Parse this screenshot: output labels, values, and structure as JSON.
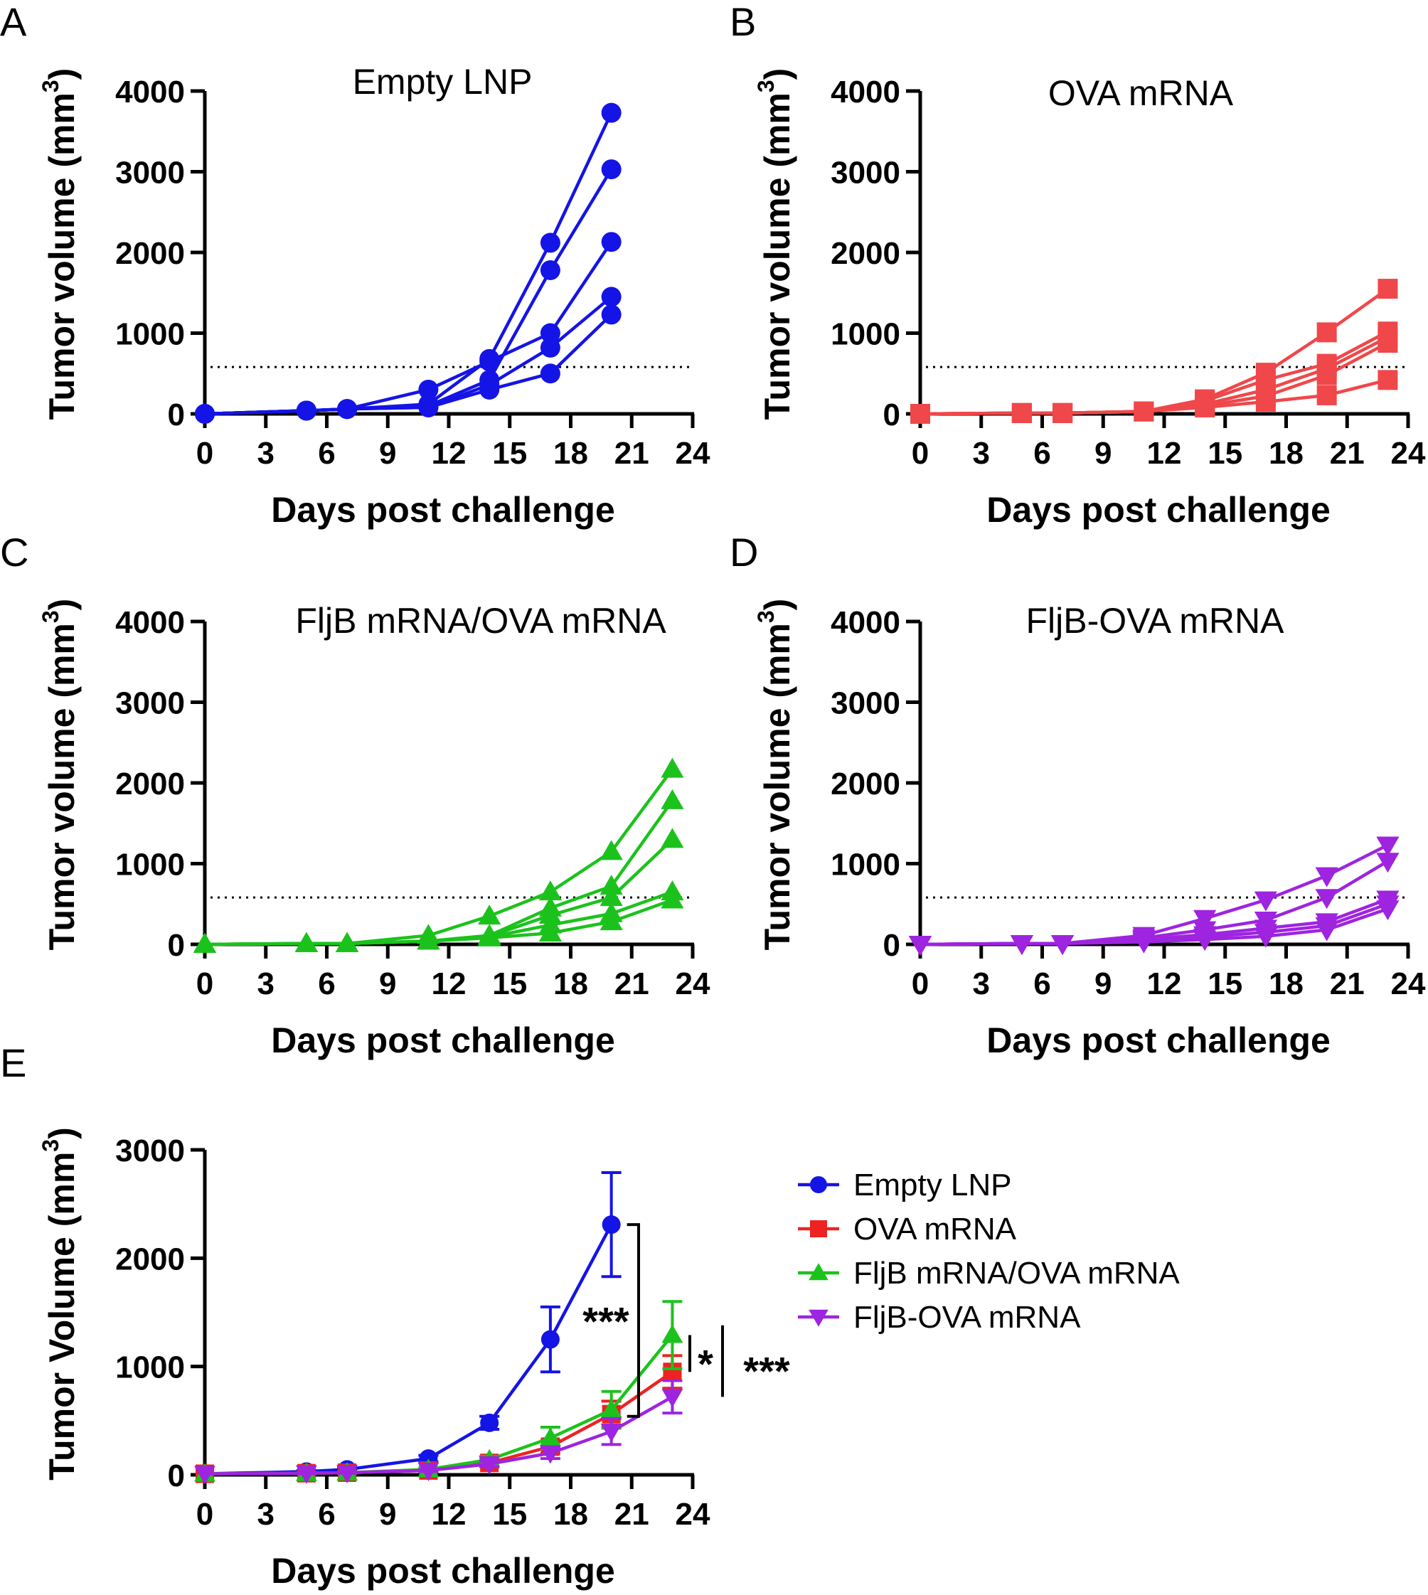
{
  "colors": {
    "blue": "#1414e6",
    "red": "#ee2222",
    "green": "#1cc21c",
    "purple": "#9e24e0",
    "light_red": "#f0474a",
    "axis": "#000000"
  },
  "chart_data": [
    {
      "panel": "A",
      "type": "line",
      "title": "Empty LNP",
      "xlabel": "Days post challenge",
      "ylabel": "Tumor volume (mm",
      "ylabel_sup": "3",
      "ylabel_end": ")",
      "xlim": [
        0,
        24
      ],
      "ylim": [
        0,
        4000
      ],
      "xticks": [
        "0",
        "3",
        "6",
        "9",
        "12",
        "15",
        "18",
        "21",
        "24"
      ],
      "yticks": [
        "0",
        "1000",
        "2000",
        "3000",
        "4000"
      ],
      "threshold": 580,
      "marker": "circle",
      "color": "blue",
      "series": [
        {
          "x": [
            0,
            5,
            7,
            11,
            14,
            17,
            20
          ],
          "y": [
            0,
            40,
            60,
            120,
            680,
            2120,
            3730
          ]
        },
        {
          "x": [
            0,
            5,
            7,
            11,
            14,
            17,
            20
          ],
          "y": [
            0,
            40,
            60,
            100,
            420,
            1780,
            3030
          ]
        },
        {
          "x": [
            0,
            5,
            7,
            11,
            14,
            17,
            20
          ],
          "y": [
            0,
            40,
            60,
            300,
            650,
            1000,
            2130
          ]
        },
        {
          "x": [
            0,
            5,
            7,
            11,
            14,
            17,
            20
          ],
          "y": [
            0,
            40,
            60,
            80,
            360,
            820,
            1450
          ]
        },
        {
          "x": [
            0,
            5,
            7,
            11,
            14,
            17,
            20
          ],
          "y": [
            0,
            40,
            60,
            80,
            300,
            500,
            1230
          ]
        }
      ]
    },
    {
      "panel": "B",
      "type": "line",
      "title": "OVA mRNA",
      "xlabel": "Days post challenge",
      "ylabel": "Tumor volume (mm",
      "ylabel_sup": "3",
      "ylabel_end": ")",
      "xlim": [
        0,
        24
      ],
      "ylim": [
        0,
        4000
      ],
      "xticks": [
        "0",
        "3",
        "6",
        "9",
        "12",
        "15",
        "18",
        "21",
        "24"
      ],
      "yticks": [
        "0",
        "1000",
        "2000",
        "3000",
        "4000"
      ],
      "threshold": 580,
      "marker": "square",
      "color": "light_red",
      "series": [
        {
          "x": [
            0,
            5,
            7,
            11,
            14,
            17,
            20,
            23
          ],
          "y": [
            0,
            10,
            10,
            30,
            180,
            510,
            1010,
            1550
          ]
        },
        {
          "x": [
            0,
            5,
            7,
            11,
            14,
            17,
            20,
            23
          ],
          "y": [
            0,
            10,
            10,
            30,
            160,
            420,
            620,
            1020
          ]
        },
        {
          "x": [
            0,
            5,
            7,
            11,
            14,
            17,
            20,
            23
          ],
          "y": [
            0,
            10,
            10,
            30,
            120,
            300,
            560,
            950
          ]
        },
        {
          "x": [
            0,
            5,
            7,
            11,
            14,
            17,
            20,
            23
          ],
          "y": [
            0,
            10,
            10,
            30,
            100,
            220,
            480,
            880
          ]
        },
        {
          "x": [
            0,
            5,
            7,
            11,
            14,
            17,
            20,
            23
          ],
          "y": [
            0,
            10,
            10,
            30,
            80,
            150,
            230,
            420
          ]
        }
      ]
    },
    {
      "panel": "C",
      "type": "line",
      "title": "FljB mRNA/OVA mRNA",
      "xlabel": "Days post challenge",
      "ylabel": "Tumor volume (mm",
      "ylabel_sup": "3",
      "ylabel_end": ")",
      "xlim": [
        0,
        24
      ],
      "ylim": [
        0,
        4000
      ],
      "xticks": [
        "0",
        "3",
        "6",
        "9",
        "12",
        "15",
        "18",
        "21",
        "24"
      ],
      "yticks": [
        "0",
        "1000",
        "2000",
        "3000",
        "4000"
      ],
      "threshold": 580,
      "marker": "triangle-up",
      "color": "green",
      "series": [
        {
          "x": [
            0,
            5,
            7,
            11,
            14,
            17,
            20,
            23
          ],
          "y": [
            0,
            10,
            10,
            110,
            350,
            650,
            1150,
            2170
          ]
        },
        {
          "x": [
            0,
            5,
            7,
            11,
            14,
            17,
            20,
            23
          ],
          "y": [
            0,
            10,
            10,
            40,
            110,
            450,
            720,
            1780
          ]
        },
        {
          "x": [
            0,
            5,
            7,
            11,
            14,
            17,
            20,
            23
          ],
          "y": [
            0,
            10,
            10,
            40,
            100,
            360,
            580,
            1300
          ]
        },
        {
          "x": [
            0,
            5,
            7,
            11,
            14,
            17,
            20,
            23
          ],
          "y": [
            0,
            10,
            10,
            40,
            90,
            240,
            380,
            650
          ]
        },
        {
          "x": [
            0,
            5,
            7,
            11,
            14,
            17,
            20,
            23
          ],
          "y": [
            0,
            10,
            10,
            40,
            80,
            140,
            280,
            550
          ]
        }
      ]
    },
    {
      "panel": "D",
      "type": "line",
      "title": "FljB-OVA mRNA",
      "xlabel": "Days post challenge",
      "ylabel": "Tumor volume (mm",
      "ylabel_sup": "3",
      "ylabel_end": ")",
      "xlim": [
        0,
        24
      ],
      "ylim": [
        0,
        4000
      ],
      "xticks": [
        "0",
        "3",
        "6",
        "9",
        "12",
        "15",
        "18",
        "21",
        "24"
      ],
      "yticks": [
        "0",
        "1000",
        "2000",
        "3000",
        "4000"
      ],
      "threshold": 580,
      "marker": "triangle-down",
      "color": "purple",
      "series": [
        {
          "x": [
            0,
            5,
            7,
            11,
            14,
            17,
            20,
            23
          ],
          "y": [
            0,
            10,
            10,
            110,
            320,
            550,
            850,
            1230
          ]
        },
        {
          "x": [
            0,
            5,
            7,
            11,
            14,
            17,
            20,
            23
          ],
          "y": [
            0,
            10,
            10,
            80,
            180,
            300,
            580,
            1030
          ]
        },
        {
          "x": [
            0,
            5,
            7,
            11,
            14,
            17,
            20,
            23
          ],
          "y": [
            0,
            10,
            10,
            60,
            120,
            200,
            280,
            560
          ]
        },
        {
          "x": [
            0,
            5,
            7,
            11,
            14,
            17,
            20,
            23
          ],
          "y": [
            0,
            10,
            10,
            50,
            90,
            150,
            230,
            500
          ]
        },
        {
          "x": [
            0,
            5,
            7,
            11,
            14,
            17,
            20,
            23
          ],
          "y": [
            0,
            10,
            10,
            30,
            60,
            100,
            180,
            440
          ]
        }
      ]
    },
    {
      "panel": "E",
      "type": "line",
      "title": "",
      "xlabel": "Days post challenge",
      "ylabel": "Tumor Volume (mm",
      "ylabel_sup": "3",
      "ylabel_end": ")",
      "xlim": [
        0,
        24
      ],
      "ylim": [
        0,
        3000
      ],
      "xticks": [
        "0",
        "3",
        "6",
        "9",
        "12",
        "15",
        "18",
        "21",
        "24"
      ],
      "yticks": [
        "0",
        "1000",
        "2000",
        "3000"
      ],
      "legend_position": "right",
      "series": [
        {
          "name": "Empty LNP",
          "color": "blue",
          "marker": "circle",
          "x": [
            0,
            5,
            7,
            11,
            14,
            17,
            20
          ],
          "y": [
            10,
            30,
            50,
            150,
            480,
            1250,
            2310
          ],
          "err": [
            0,
            10,
            15,
            30,
            60,
            300,
            480
          ]
        },
        {
          "name": "OVA mRNA",
          "color": "red",
          "marker": "square",
          "x": [
            0,
            5,
            7,
            11,
            14,
            17,
            20,
            23
          ],
          "y": [
            10,
            15,
            20,
            40,
            110,
            260,
            560,
            950
          ],
          "err": [
            0,
            5,
            5,
            10,
            30,
            60,
            120,
            150
          ]
        },
        {
          "name": "FljB mRNA/OVA mRNA",
          "color": "green",
          "marker": "triangle-up",
          "x": [
            0,
            5,
            7,
            11,
            14,
            17,
            20,
            23
          ],
          "y": [
            10,
            15,
            20,
            50,
            140,
            340,
            600,
            1290
          ],
          "err": [
            0,
            5,
            5,
            15,
            30,
            100,
            170,
            310
          ]
        },
        {
          "name": "FljB-OVA mRNA",
          "color": "purple",
          "marker": "triangle-down",
          "x": [
            0,
            5,
            7,
            11,
            14,
            17,
            20,
            23
          ],
          "y": [
            10,
            15,
            20,
            40,
            100,
            200,
            400,
            720
          ],
          "err": [
            0,
            5,
            5,
            10,
            25,
            50,
            120,
            150
          ]
        }
      ],
      "significance": [
        {
          "label": "***",
          "between": [
            "Empty LNP",
            "FljB-OVA mRNA"
          ]
        },
        {
          "label": "*",
          "between": [
            "FljB mRNA/OVA mRNA",
            "OVA mRNA"
          ]
        },
        {
          "label": "***",
          "between": [
            "FljB mRNA/OVA mRNA",
            "FljB-OVA mRNA"
          ]
        }
      ]
    }
  ]
}
